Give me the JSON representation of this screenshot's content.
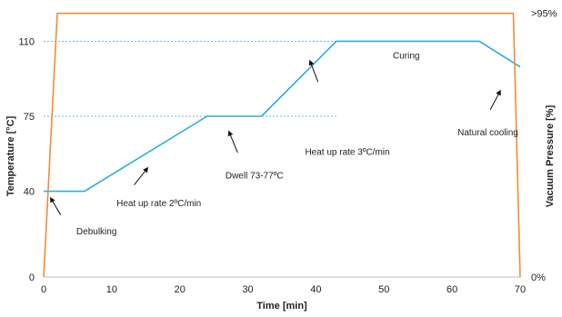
{
  "chart_data": {
    "type": "line",
    "xlabel": "Time [min]",
    "ylabel": "Temperature [°C]",
    "y2label": "Vacuum Pressure [%]",
    "xlim": [
      0,
      70
    ],
    "ylim": [
      0,
      125
    ],
    "x_ticks": [
      0,
      10,
      20,
      30,
      40,
      50,
      60,
      70
    ],
    "y_ticks": [
      0,
      40,
      75,
      110
    ],
    "y2_ticks": [
      {
        "label": "0%",
        "y": 0
      },
      {
        "label": ">95%",
        "y": 123
      }
    ],
    "grid": "dashed reference lines at 75 and 110",
    "reference_lines": [
      75,
      110
    ],
    "series": [
      {
        "color": "#29aee0",
        "x": [
          0,
          6,
          24,
          32,
          43,
          64,
          70
        ],
        "y": [
          40,
          40,
          75,
          75,
          110,
          110,
          98
        ]
      },
      {
        "color": "#f08c3a",
        "x": [
          0,
          2,
          69,
          70
        ],
        "y": [
          0,
          123,
          123,
          0
        ]
      }
    ],
    "annotations": [
      {
        "text": "Debulking",
        "x": 4.8,
        "y": 20,
        "arrow_from": [
          2.5,
          29
        ],
        "arrow_to": [
          1.0,
          37
        ]
      },
      {
        "text": "Heat up rate 2ºC/min",
        "x": 10.7,
        "y": 33,
        "arrow_from": [
          13.3,
          43
        ],
        "arrow_to": [
          15.3,
          51
        ]
      },
      {
        "text": "Dwell 73-77ºC",
        "x": 26.7,
        "y": 46,
        "arrow_from": [
          28.5,
          58
        ],
        "arrow_to": [
          27.2,
          68
        ]
      },
      {
        "text": "Heat up rate 3ºC/min",
        "x": 38.4,
        "y": 57,
        "arrow_from": [
          40.3,
          91
        ],
        "arrow_to": [
          39.1,
          101
        ]
      },
      {
        "text": "Curing",
        "x": 51.3,
        "y": 102,
        "arrow_from": null,
        "arrow_to": null
      },
      {
        "text": "Natural cooling",
        "x": 60.8,
        "y": 66,
        "arrow_from": [
          65.6,
          78
        ],
        "arrow_to": [
          67.1,
          87
        ]
      }
    ]
  }
}
